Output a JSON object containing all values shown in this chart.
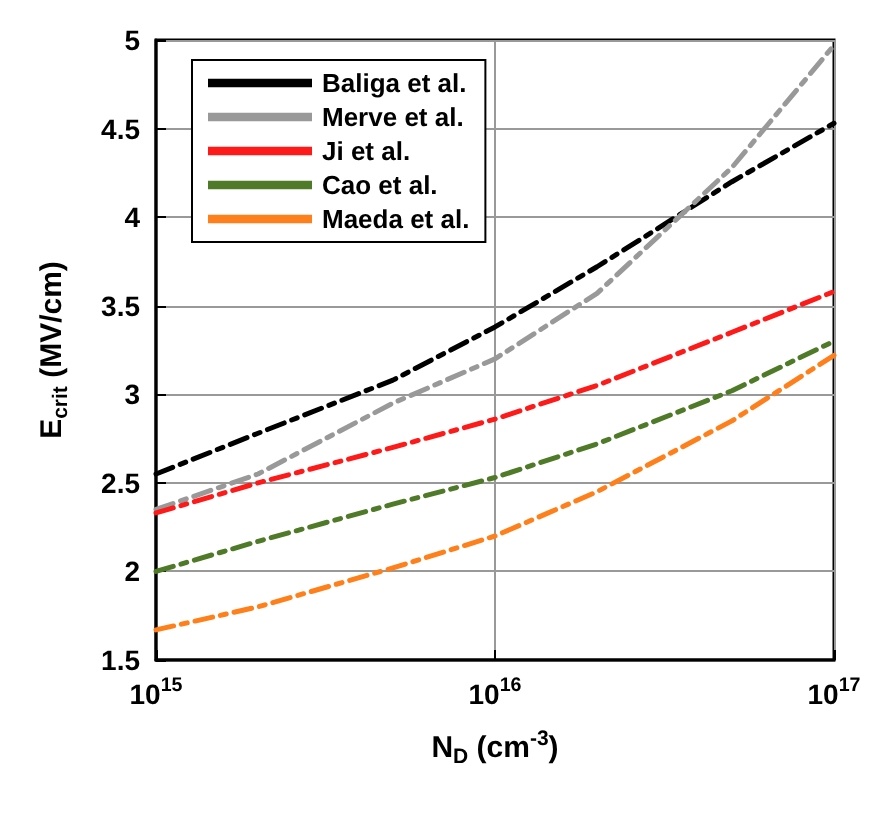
{
  "chart_data": {
    "type": "line",
    "xlabel": "N$_{D}$ (cm$^{-3}$)",
    "ylabel": "E$_{crit}$ (MV/cm)",
    "x": [
      1000000000000000.0,
      2000000000000000.0,
      5000000000000000.0,
      1e+16,
      2e+16,
      5e+16,
      1e+17
    ],
    "series": [
      {
        "name": "Baliga et al.",
        "color": "#000000",
        "line_style": "dashed",
        "values": [
          2.55,
          2.78,
          3.08,
          3.38,
          3.72,
          4.2,
          4.53
        ]
      },
      {
        "name": "Merve et al.",
        "color": "#999999",
        "line_style": "dashed",
        "values": [
          2.35,
          2.55,
          2.95,
          3.2,
          3.57,
          4.28,
          4.97
        ]
      },
      {
        "name": "Ji et al.",
        "color": "#ff1a1a",
        "line_style": "dashed",
        "values": [
          2.33,
          2.5,
          2.7,
          2.86,
          3.05,
          3.35,
          3.58
        ]
      },
      {
        "name": "Cao et al.",
        "color": "#4f7a28",
        "line_style": "dashed",
        "values": [
          2.0,
          2.17,
          2.38,
          2.53,
          2.72,
          3.02,
          3.3
        ]
      },
      {
        "name": "Maeda et al.",
        "color": "#ff7f1a",
        "line_style": "dashed",
        "values": [
          1.67,
          1.8,
          2.02,
          2.2,
          2.45,
          2.85,
          3.22
        ]
      }
    ],
    "log": "x",
    "xlim": [
      1000000000000000.0,
      1e+17
    ],
    "xticks": [
      {
        "value": 1000000000000000.0,
        "label": "10$^{15}$"
      },
      {
        "value": 1e+16,
        "label": "10$^{16}$"
      },
      {
        "value": 1e+17,
        "label": "10$^{17}$"
      }
    ],
    "ylim": [
      1.5,
      5
    ],
    "yticks": [
      1.5,
      2,
      2.5,
      3,
      3.5,
      4,
      4.5,
      5
    ],
    "grid": true,
    "legend": "top left",
    "marker": "none"
  }
}
